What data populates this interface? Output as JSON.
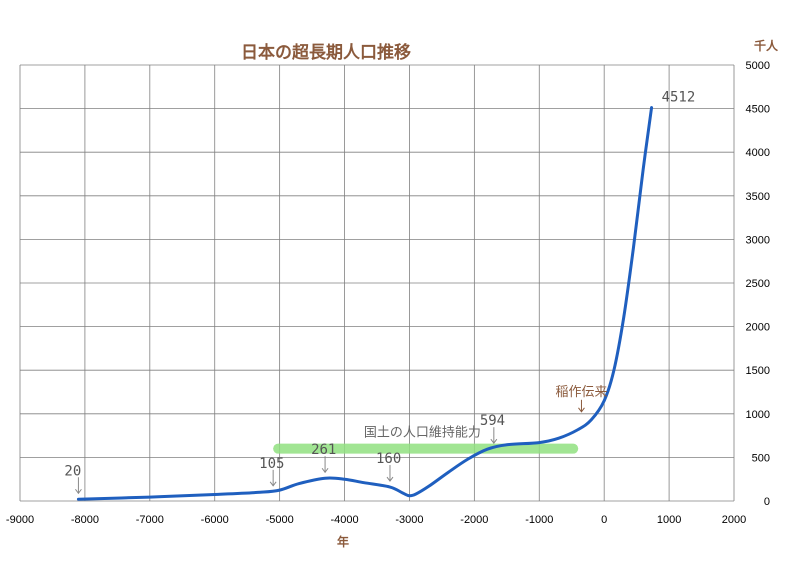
{
  "chart_data": {
    "type": "line",
    "title": "日本の超長期人口推移",
    "xlabel": "年",
    "ylabel": "千人",
    "xlim": [
      -9000,
      2000
    ],
    "ylim": [
      0,
      5000
    ],
    "x_ticks": [
      "-9000",
      "-8000",
      "-7000",
      "-6000",
      "-5000",
      "-4000",
      "-3000",
      "-2000",
      "-1000",
      "0",
      "1000",
      "2000"
    ],
    "y_ticks": [
      "0",
      "500",
      "1000",
      "1500",
      "2000",
      "2500",
      "3000",
      "3500",
      "4000",
      "4500",
      "5000"
    ],
    "grid": true,
    "series": [
      {
        "color": "#1f5fbf",
        "points": [
          [
            -8100,
            20
          ],
          [
            -7000,
            45
          ],
          [
            -6000,
            75
          ],
          [
            -5300,
            100
          ],
          [
            -5000,
            125
          ],
          [
            -4700,
            200
          ],
          [
            -4300,
            261
          ],
          [
            -4000,
            250
          ],
          [
            -3700,
            210
          ],
          [
            -3300,
            160
          ],
          [
            -3100,
            90
          ],
          [
            -3000,
            60
          ],
          [
            -2900,
            80
          ],
          [
            -2700,
            170
          ],
          [
            -2400,
            330
          ],
          [
            -2100,
            480
          ],
          [
            -1800,
            594
          ],
          [
            -1500,
            645
          ],
          [
            -1000,
            670
          ],
          [
            -700,
            720
          ],
          [
            -400,
            820
          ],
          [
            -200,
            930
          ],
          [
            0,
            1150
          ],
          [
            150,
            1500
          ],
          [
            300,
            2100
          ],
          [
            450,
            2900
          ],
          [
            600,
            3800
          ],
          [
            730,
            4512
          ]
        ]
      }
    ],
    "data_labels": [
      {
        "text": "20",
        "x": -8100,
        "y": 20
      },
      {
        "text": "105",
        "x": -5100,
        "y": 105
      },
      {
        "text": "261",
        "x": -4300,
        "y": 261
      },
      {
        "text": "160",
        "x": -3300,
        "y": 160
      },
      {
        "text": "594",
        "x": -1700,
        "y": 594
      },
      {
        "text": "4512",
        "x": 730,
        "y": 4512
      }
    ],
    "annotations": [
      {
        "text": "稲作伝来",
        "x": -350,
        "y": 1000
      },
      {
        "text": "国土の人口維持能力",
        "x": -2800,
        "y": 600,
        "range": [
          -5100,
          -400
        ],
        "color": "#90e080"
      }
    ]
  }
}
